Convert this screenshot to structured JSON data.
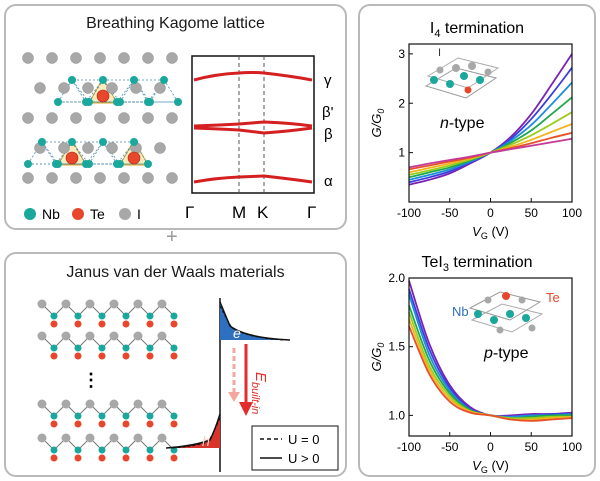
{
  "panel_a": {
    "title": "Breathing Kagome lattice",
    "legend": [
      {
        "label": "Nb",
        "color": "#1aa79c"
      },
      {
        "label": "Te",
        "color": "#e8472b"
      },
      {
        "label": "I",
        "color": "#a8a8a8"
      }
    ],
    "bands": {
      "labels": [
        "γ",
        "β'",
        "β",
        "α"
      ],
      "kpoints": [
        "Γ",
        "M",
        "K",
        "Γ"
      ]
    }
  },
  "plus": "+",
  "panel_b": {
    "title": "Janus van der Waals materials",
    "dots": "⋮",
    "electron": "e",
    "hole": "h",
    "field_label": "E",
    "field_sub": "built-in",
    "legend": [
      "U = 0",
      "U > 0"
    ]
  },
  "chart_data": [
    {
      "type": "line",
      "title": "I4 termination",
      "title_main": "I",
      "title_sub": "4",
      "title_rest": " termination",
      "annotation": "n-type",
      "atom_label": "I",
      "xlabel": "VG (V)",
      "ylabel": "G/G0",
      "xlim": [
        -100,
        100
      ],
      "ylim": [
        0.0,
        3.2
      ],
      "xticks": [
        -100,
        -50,
        0,
        50,
        100
      ],
      "yticks": [
        1,
        2,
        3
      ],
      "x": [
        -100,
        -75,
        -50,
        -25,
        0,
        25,
        50,
        75,
        100
      ],
      "series": [
        {
          "color": "#7a22b5",
          "values": [
            0.35,
            0.45,
            0.58,
            0.78,
            1.0,
            1.32,
            1.78,
            2.38,
            3.0
          ]
        },
        {
          "color": "#3c3fe0",
          "values": [
            0.4,
            0.5,
            0.62,
            0.8,
            1.0,
            1.28,
            1.68,
            2.18,
            2.72
          ]
        },
        {
          "color": "#1d8fd8",
          "values": [
            0.45,
            0.55,
            0.66,
            0.82,
            1.0,
            1.24,
            1.56,
            1.98,
            2.42
          ]
        },
        {
          "color": "#1fa84d",
          "values": [
            0.5,
            0.6,
            0.7,
            0.84,
            1.0,
            1.2,
            1.45,
            1.78,
            2.12
          ]
        },
        {
          "color": "#9ccc1c",
          "values": [
            0.55,
            0.64,
            0.74,
            0.86,
            1.0,
            1.16,
            1.35,
            1.58,
            1.82
          ]
        },
        {
          "color": "#f0b51a",
          "values": [
            0.6,
            0.69,
            0.78,
            0.88,
            1.0,
            1.12,
            1.26,
            1.42,
            1.58
          ]
        },
        {
          "color": "#e8502a",
          "values": [
            0.66,
            0.74,
            0.82,
            0.9,
            1.0,
            1.09,
            1.19,
            1.3,
            1.4
          ]
        },
        {
          "color": "#c23a9a",
          "values": [
            0.7,
            0.78,
            0.85,
            0.92,
            1.0,
            1.07,
            1.14,
            1.21,
            1.28
          ]
        }
      ]
    },
    {
      "type": "line",
      "title": "TeI3 termination",
      "title_main": "TeI",
      "title_sub": "3",
      "title_rest": " termination",
      "annotation": "p-type",
      "atom_labels": [
        "Nb",
        "Te"
      ],
      "xlabel": "VG (V)",
      "ylabel": "G/G0",
      "xlim": [
        -100,
        100
      ],
      "ylim": [
        0.85,
        2.0
      ],
      "xticks": [
        -100,
        -50,
        0,
        50,
        100
      ],
      "yticks": [
        1.0,
        1.5,
        2.0
      ],
      "x": [
        -100,
        -75,
        -50,
        -25,
        0,
        25,
        50,
        75,
        100
      ],
      "series": [
        {
          "color": "#7a22b5",
          "values": [
            1.98,
            1.52,
            1.22,
            1.06,
            1.0,
            1.0,
            1.01,
            1.01,
            1.02
          ]
        },
        {
          "color": "#3c3fe0",
          "values": [
            1.92,
            1.48,
            1.2,
            1.05,
            1.0,
            0.99,
            1.0,
            1.01,
            1.01
          ]
        },
        {
          "color": "#1d8fd8",
          "values": [
            1.88,
            1.44,
            1.18,
            1.04,
            1.0,
            0.99,
            1.0,
            1.0,
            1.01
          ]
        },
        {
          "color": "#1fa84d",
          "values": [
            1.8,
            1.4,
            1.16,
            1.04,
            1.0,
            0.98,
            0.99,
            1.0,
            1.0
          ]
        },
        {
          "color": "#9ccc1c",
          "values": [
            1.75,
            1.36,
            1.14,
            1.03,
            1.0,
            0.98,
            0.98,
            0.99,
            0.99
          ]
        },
        {
          "color": "#f0b51a",
          "values": [
            1.7,
            1.33,
            1.12,
            1.03,
            1.0,
            0.97,
            0.97,
            0.98,
            0.99
          ]
        },
        {
          "color": "#e8502a",
          "values": [
            1.65,
            1.3,
            1.1,
            1.02,
            1.0,
            0.97,
            0.96,
            0.97,
            0.98
          ]
        }
      ]
    }
  ]
}
